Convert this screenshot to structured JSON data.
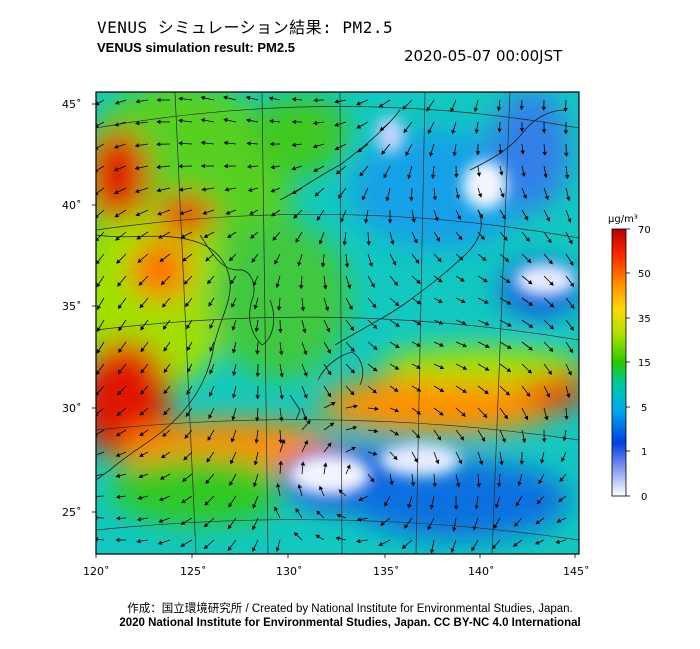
{
  "header": {
    "title_jp": "VENUS シミュレーション結果: PM2.5",
    "title_en": "VENUS simulation result: PM2.5",
    "timestamp": "2020-05-07 00:00JST"
  },
  "map": {
    "lon_ticks": [
      "120˚",
      "125˚",
      "130˚",
      "135˚",
      "140˚",
      "145˚"
    ],
    "lat_ticks": [
      "45˚",
      "40˚",
      "35˚",
      "30˚",
      "25˚"
    ]
  },
  "colorbar": {
    "unit": "μg/m³",
    "ticks": [
      "70",
      "50",
      "35",
      "15",
      "5",
      "1",
      "0"
    ],
    "colors": [
      "#b40000",
      "#ff2a00",
      "#ff8a00",
      "#ffd800",
      "#a8e000",
      "#28c800",
      "#00c8a0",
      "#00a8f0",
      "#0040e0",
      "#ffffff"
    ]
  },
  "footer": {
    "credit": "作成：国立環境研究所 / Created by National Institute for Environmental Studies, Japan.",
    "license": "2020 National Institute for Environmental Studies, Japan. CC BY-NC 4.0 International"
  }
}
